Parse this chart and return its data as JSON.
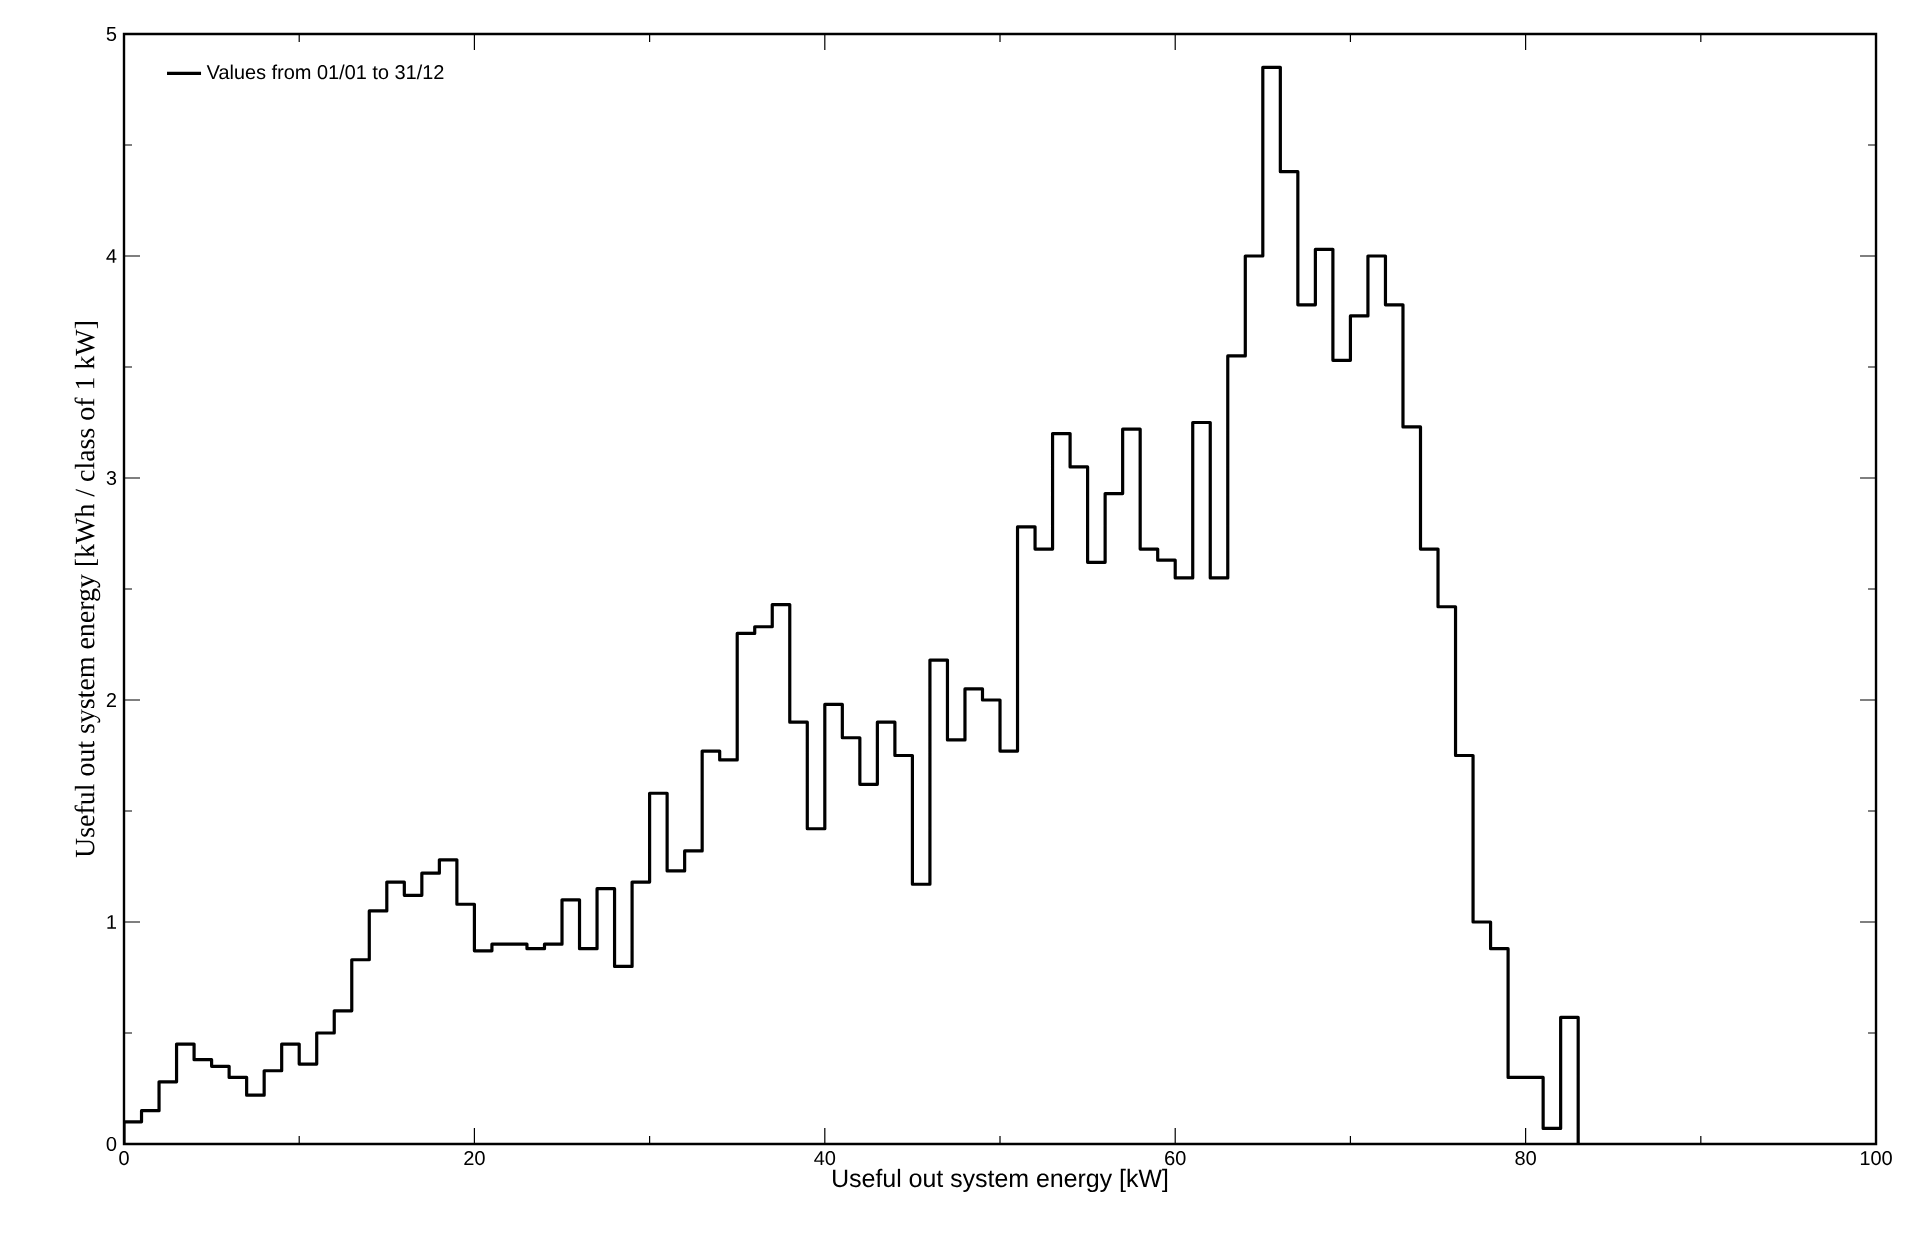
{
  "chart_data": {
    "type": "histogram",
    "xlabel": "Useful out system energy [kW]",
    "ylabel": "Useful out system energy [kWh / class of 1 kW]",
    "bins": [
      0,
      1,
      2,
      3,
      4,
      5,
      6,
      7,
      8,
      9,
      10,
      11,
      12,
      13,
      14,
      15,
      16,
      17,
      18,
      19,
      20,
      21,
      22,
      23,
      24,
      25,
      26,
      27,
      28,
      29,
      30,
      31,
      32,
      33,
      34,
      35,
      36,
      37,
      38,
      39,
      40,
      41,
      42,
      43,
      44,
      45,
      46,
      47,
      48,
      49,
      50,
      51,
      52,
      53,
      54,
      55,
      56,
      57,
      58,
      59,
      60,
      61,
      62,
      63,
      64,
      65,
      66,
      67,
      68,
      69,
      70,
      71,
      72,
      73,
      74,
      75,
      76,
      77,
      78,
      79,
      80,
      81,
      82,
      83
    ],
    "series": [
      {
        "name": "Values from 01/01 to 31/12",
        "color": "#000000",
        "values": [
          0.1,
          0.15,
          0.28,
          0.45,
          0.38,
          0.35,
          0.3,
          0.22,
          0.33,
          0.45,
          0.36,
          0.5,
          0.6,
          0.83,
          1.05,
          1.18,
          1.12,
          1.22,
          1.28,
          1.08,
          0.87,
          0.9,
          0.9,
          0.88,
          0.9,
          1.1,
          0.88,
          1.15,
          0.8,
          1.18,
          1.58,
          1.23,
          1.32,
          1.77,
          1.73,
          2.3,
          2.33,
          2.43,
          1.9,
          1.42,
          1.98,
          1.83,
          1.62,
          1.9,
          1.75,
          1.17,
          2.18,
          1.82,
          2.05,
          2.0,
          1.77,
          2.78,
          2.68,
          3.2,
          3.05,
          2.62,
          2.93,
          3.22,
          2.68,
          2.63,
          2.55,
          3.25,
          2.55,
          3.55,
          4.0,
          4.85,
          4.38,
          3.78,
          4.03,
          3.53,
          3.73,
          4.0,
          3.78,
          3.23,
          2.68,
          2.42,
          1.75,
          1.0,
          0.88,
          0.3,
          0.3,
          0.07,
          0.57
        ]
      }
    ],
    "xlim": [
      0,
      100
    ],
    "xticks": [
      0,
      20,
      40,
      60,
      80,
      100
    ],
    "ylim": [
      0,
      5
    ],
    "yticks": [
      0,
      1,
      2,
      3,
      4,
      5
    ],
    "legend": "top left",
    "grid": false
  }
}
